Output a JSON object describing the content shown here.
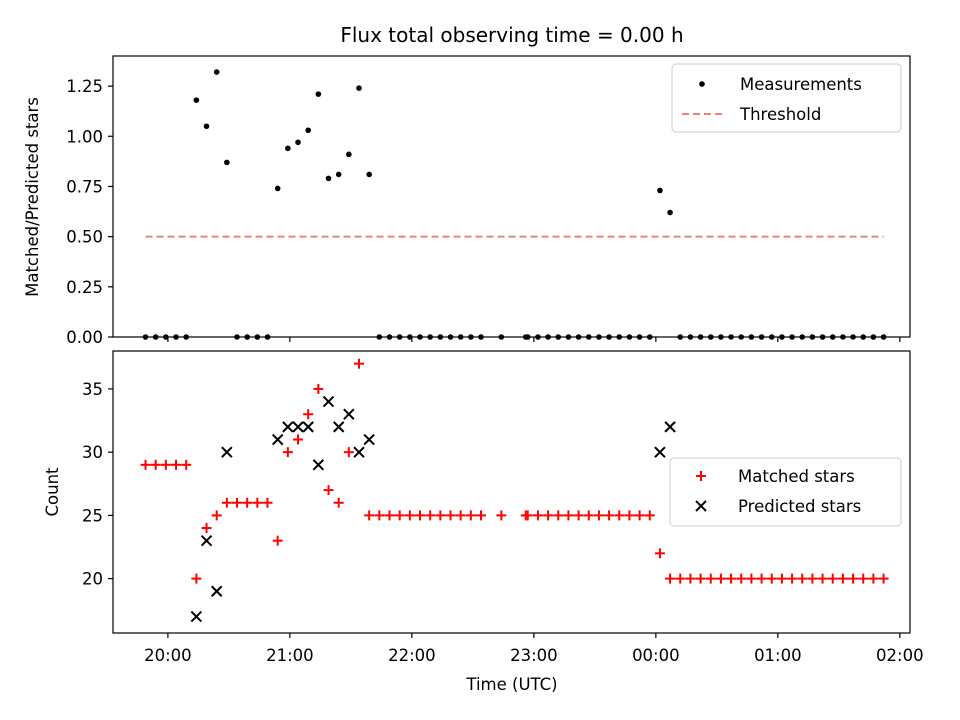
{
  "chart_data": [
    {
      "type": "scatter",
      "title": "Flux total observing time = 0.00 h",
      "xlabel": "",
      "ylabel": "Matched/Predicted stars",
      "xlim": [
        "19:33",
        "02:05"
      ],
      "ylim": [
        0,
        1.4
      ],
      "x_ticks": [
        "20:00",
        "21:00",
        "22:00",
        "23:00",
        "00:00",
        "01:00",
        "02:00"
      ],
      "y_ticks": [
        "0.00",
        "0.25",
        "0.50",
        "0.75",
        "1.00",
        "1.25"
      ],
      "legend_position": "top-right",
      "series": [
        {
          "name": "Measurements",
          "marker": "dot",
          "color": "#000000",
          "points": [
            [
              "19:49",
              0.0
            ],
            [
              "19:54",
              0.0
            ],
            [
              "19:59",
              0.0
            ],
            [
              "20:04",
              0.0
            ],
            [
              "20:09",
              0.0
            ],
            [
              "20:14",
              1.18
            ],
            [
              "20:19",
              1.05
            ],
            [
              "20:24",
              1.32
            ],
            [
              "20:29",
              0.87
            ],
            [
              "20:34",
              0.0
            ],
            [
              "20:39",
              0.0
            ],
            [
              "20:44",
              0.0
            ],
            [
              "20:49",
              0.0
            ],
            [
              "20:54",
              0.74
            ],
            [
              "20:59",
              0.94
            ],
            [
              "21:04",
              0.97
            ],
            [
              "21:09",
              1.03
            ],
            [
              "21:14",
              1.21
            ],
            [
              "21:19",
              0.79
            ],
            [
              "21:24",
              0.81
            ],
            [
              "21:29",
              0.91
            ],
            [
              "21:34",
              1.24
            ],
            [
              "21:39",
              0.81
            ],
            [
              "21:44",
              0.0
            ],
            [
              "21:49",
              0.0
            ],
            [
              "21:54",
              0.0
            ],
            [
              "21:59",
              0.0
            ],
            [
              "22:04",
              0.0
            ],
            [
              "22:09",
              0.0
            ],
            [
              "22:14",
              0.0
            ],
            [
              "22:19",
              0.0
            ],
            [
              "22:24",
              0.0
            ],
            [
              "22:29",
              0.0
            ],
            [
              "22:34",
              0.0
            ],
            [
              "22:44",
              0.0
            ],
            [
              "22:56",
              0.0
            ],
            [
              "22:57",
              0.0
            ],
            [
              "23:02",
              0.0
            ],
            [
              "23:07",
              0.0
            ],
            [
              "23:12",
              0.0
            ],
            [
              "23:17",
              0.0
            ],
            [
              "23:22",
              0.0
            ],
            [
              "23:27",
              0.0
            ],
            [
              "23:32",
              0.0
            ],
            [
              "23:37",
              0.0
            ],
            [
              "23:42",
              0.0
            ],
            [
              "23:47",
              0.0
            ],
            [
              "23:52",
              0.0
            ],
            [
              "23:57",
              0.0
            ],
            [
              "00:02",
              0.73
            ],
            [
              "00:07",
              0.62
            ],
            [
              "00:12",
              0.0
            ],
            [
              "00:17",
              0.0
            ],
            [
              "00:22",
              0.0
            ],
            [
              "00:27",
              0.0
            ],
            [
              "00:32",
              0.0
            ],
            [
              "00:37",
              0.0
            ],
            [
              "00:42",
              0.0
            ],
            [
              "00:47",
              0.0
            ],
            [
              "00:52",
              0.0
            ],
            [
              "00:57",
              0.0
            ],
            [
              "01:02",
              0.0
            ],
            [
              "01:07",
              0.0
            ],
            [
              "01:12",
              0.0
            ],
            [
              "01:17",
              0.0
            ],
            [
              "01:22",
              0.0
            ],
            [
              "01:27",
              0.0
            ],
            [
              "01:32",
              0.0
            ],
            [
              "01:37",
              0.0
            ],
            [
              "01:42",
              0.0
            ],
            [
              "01:47",
              0.0
            ],
            [
              "01:52",
              0.0
            ]
          ]
        },
        {
          "name": "Threshold",
          "marker": "dashed-line",
          "color": "#f08080",
          "points": [
            [
              "19:49",
              0.5
            ],
            [
              "01:52",
              0.5
            ]
          ]
        }
      ]
    },
    {
      "type": "scatter",
      "title": "",
      "xlabel": "Time (UTC)",
      "ylabel": "Count",
      "xlim": [
        "19:33",
        "02:05"
      ],
      "ylim": [
        15.7,
        38.0
      ],
      "x_ticks": [
        "20:00",
        "21:00",
        "22:00",
        "23:00",
        "00:00",
        "01:00",
        "02:00"
      ],
      "y_ticks": [
        "20",
        "25",
        "30",
        "35"
      ],
      "legend_position": "center-right",
      "series": [
        {
          "name": "Matched stars",
          "marker": "plus",
          "color": "#ff0000",
          "points": [
            [
              "19:49",
              29
            ],
            [
              "19:54",
              29
            ],
            [
              "19:59",
              29
            ],
            [
              "20:04",
              29
            ],
            [
              "20:09",
              29
            ],
            [
              "20:14",
              20
            ],
            [
              "20:19",
              24
            ],
            [
              "20:24",
              25
            ],
            [
              "20:29",
              26
            ],
            [
              "20:34",
              26
            ],
            [
              "20:39",
              26
            ],
            [
              "20:44",
              26
            ],
            [
              "20:49",
              26
            ],
            [
              "20:54",
              23
            ],
            [
              "20:59",
              30
            ],
            [
              "21:04",
              31
            ],
            [
              "21:09",
              33
            ],
            [
              "21:14",
              35
            ],
            [
              "21:19",
              27
            ],
            [
              "21:24",
              26
            ],
            [
              "21:29",
              30
            ],
            [
              "21:34",
              37
            ],
            [
              "21:39",
              25
            ],
            [
              "21:44",
              25
            ],
            [
              "21:49",
              25
            ],
            [
              "21:54",
              25
            ],
            [
              "21:59",
              25
            ],
            [
              "22:04",
              25
            ],
            [
              "22:09",
              25
            ],
            [
              "22:14",
              25
            ],
            [
              "22:19",
              25
            ],
            [
              "22:24",
              25
            ],
            [
              "22:29",
              25
            ],
            [
              "22:34",
              25
            ],
            [
              "22:44",
              25
            ],
            [
              "22:56",
              25
            ],
            [
              "22:57",
              25
            ],
            [
              "23:02",
              25
            ],
            [
              "23:07",
              25
            ],
            [
              "23:12",
              25
            ],
            [
              "23:17",
              25
            ],
            [
              "23:22",
              25
            ],
            [
              "23:27",
              25
            ],
            [
              "23:32",
              25
            ],
            [
              "23:37",
              25
            ],
            [
              "23:42",
              25
            ],
            [
              "23:47",
              25
            ],
            [
              "23:52",
              25
            ],
            [
              "23:57",
              25
            ],
            [
              "00:02",
              22
            ],
            [
              "00:07",
              20
            ],
            [
              "00:12",
              20
            ],
            [
              "00:17",
              20
            ],
            [
              "00:22",
              20
            ],
            [
              "00:27",
              20
            ],
            [
              "00:32",
              20
            ],
            [
              "00:37",
              20
            ],
            [
              "00:42",
              20
            ],
            [
              "00:47",
              20
            ],
            [
              "00:52",
              20
            ],
            [
              "00:57",
              20
            ],
            [
              "01:02",
              20
            ],
            [
              "01:07",
              20
            ],
            [
              "01:12",
              20
            ],
            [
              "01:17",
              20
            ],
            [
              "01:22",
              20
            ],
            [
              "01:27",
              20
            ],
            [
              "01:32",
              20
            ],
            [
              "01:37",
              20
            ],
            [
              "01:42",
              20
            ],
            [
              "01:47",
              20
            ],
            [
              "01:52",
              20
            ]
          ]
        },
        {
          "name": "Predicted stars",
          "marker": "x",
          "color": "#000000",
          "points": [
            [
              "20:14",
              17
            ],
            [
              "20:19",
              23
            ],
            [
              "20:24",
              19
            ],
            [
              "20:29",
              30
            ],
            [
              "20:54",
              31
            ],
            [
              "20:59",
              32
            ],
            [
              "21:04",
              32
            ],
            [
              "21:09",
              32
            ],
            [
              "21:14",
              29
            ],
            [
              "21:19",
              34
            ],
            [
              "21:24",
              32
            ],
            [
              "21:29",
              33
            ],
            [
              "21:34",
              30
            ],
            [
              "21:39",
              31
            ],
            [
              "00:02",
              30
            ],
            [
              "00:07",
              32
            ]
          ]
        }
      ]
    }
  ]
}
